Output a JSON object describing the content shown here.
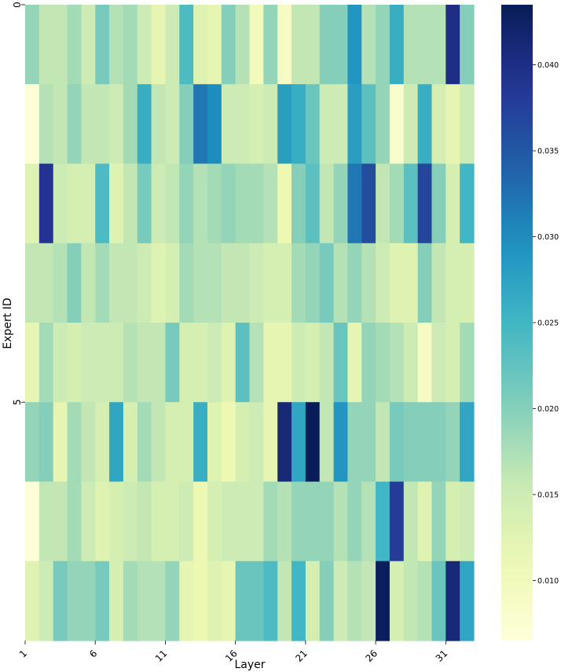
{
  "chart_data": {
    "type": "heatmap",
    "title": "",
    "xlabel": "Layer",
    "ylabel": "Expert ID",
    "x_tick_labels": [
      "1",
      "6",
      "11",
      "16",
      "21",
      "26",
      "31"
    ],
    "x_tick_indices": [
      0,
      5,
      10,
      15,
      20,
      25,
      30
    ],
    "y_tick_labels": [
      "0",
      "5"
    ],
    "y_tick_indices": [
      0,
      5
    ],
    "layers": [
      1,
      2,
      3,
      4,
      5,
      6,
      7,
      8,
      9,
      10,
      11,
      12,
      13,
      14,
      15,
      16,
      17,
      18,
      19,
      20,
      21,
      22,
      23,
      24,
      25,
      26,
      27,
      28,
      29,
      30,
      31,
      32
    ],
    "experts": [
      0,
      1,
      2,
      3,
      4,
      5,
      6,
      7
    ],
    "colormap": "YlGnBu",
    "vmin": 0.0065,
    "vmax": 0.0435,
    "colorbar_ticks": [
      0.01,
      0.015,
      0.02,
      0.025,
      0.03,
      0.035,
      0.04
    ],
    "colorbar_tick_labels": [
      "0.010",
      "0.015",
      "0.020",
      "0.025",
      "0.030",
      "0.035",
      "0.040"
    ],
    "values": [
      [
        0.019,
        0.016,
        0.016,
        0.018,
        0.015,
        0.021,
        0.017,
        0.018,
        0.015,
        0.012,
        0.015,
        0.024,
        0.013,
        0.012,
        0.02,
        0.017,
        0.01,
        0.019,
        0.009,
        0.016,
        0.016,
        0.02,
        0.02,
        0.029,
        0.017,
        0.019,
        0.026,
        0.017,
        0.017,
        0.017,
        0.04,
        0.02
      ],
      [
        0.007,
        0.017,
        0.016,
        0.019,
        0.016,
        0.016,
        0.015,
        0.018,
        0.026,
        0.016,
        0.015,
        0.02,
        0.032,
        0.03,
        0.015,
        0.015,
        0.014,
        0.015,
        0.028,
        0.026,
        0.022,
        0.015,
        0.015,
        0.028,
        0.023,
        0.019,
        0.008,
        0.015,
        0.026,
        0.014,
        0.012,
        0.015
      ],
      [
        0.013,
        0.039,
        0.015,
        0.014,
        0.014,
        0.024,
        0.013,
        0.016,
        0.021,
        0.015,
        0.016,
        0.019,
        0.017,
        0.018,
        0.019,
        0.018,
        0.018,
        0.017,
        0.011,
        0.02,
        0.023,
        0.016,
        0.019,
        0.032,
        0.036,
        0.016,
        0.018,
        0.023,
        0.037,
        0.02,
        0.014,
        0.025
      ],
      [
        0.016,
        0.016,
        0.017,
        0.02,
        0.016,
        0.018,
        0.016,
        0.016,
        0.015,
        0.013,
        0.014,
        0.018,
        0.017,
        0.017,
        0.016,
        0.016,
        0.015,
        0.014,
        0.014,
        0.018,
        0.019,
        0.021,
        0.017,
        0.019,
        0.017,
        0.015,
        0.013,
        0.013,
        0.02,
        0.016,
        0.014,
        0.014
      ],
      [
        0.012,
        0.018,
        0.015,
        0.014,
        0.015,
        0.015,
        0.015,
        0.017,
        0.016,
        0.016,
        0.021,
        0.014,
        0.014,
        0.015,
        0.013,
        0.023,
        0.017,
        0.012,
        0.012,
        0.015,
        0.014,
        0.016,
        0.022,
        0.012,
        0.019,
        0.018,
        0.017,
        0.015,
        0.009,
        0.015,
        0.014,
        0.018
      ],
      [
        0.019,
        0.02,
        0.012,
        0.018,
        0.016,
        0.014,
        0.027,
        0.014,
        0.018,
        0.016,
        0.014,
        0.014,
        0.026,
        0.013,
        0.011,
        0.014,
        0.015,
        0.012,
        0.041,
        0.027,
        0.0435,
        0.016,
        0.029,
        0.019,
        0.019,
        0.016,
        0.021,
        0.02,
        0.02,
        0.02,
        0.019,
        0.027
      ],
      [
        0.007,
        0.016,
        0.016,
        0.018,
        0.015,
        0.013,
        0.014,
        0.015,
        0.016,
        0.014,
        0.014,
        0.015,
        0.011,
        0.014,
        0.015,
        0.015,
        0.015,
        0.018,
        0.017,
        0.019,
        0.019,
        0.019,
        0.017,
        0.019,
        0.017,
        0.025,
        0.038,
        0.016,
        0.013,
        0.019,
        0.014,
        0.015
      ],
      [
        0.013,
        0.015,
        0.021,
        0.019,
        0.019,
        0.021,
        0.014,
        0.018,
        0.017,
        0.017,
        0.019,
        0.012,
        0.011,
        0.013,
        0.012,
        0.022,
        0.022,
        0.024,
        0.016,
        0.025,
        0.014,
        0.02,
        0.015,
        0.017,
        0.016,
        0.043,
        0.014,
        0.016,
        0.017,
        0.022,
        0.041,
        0.027
      ]
    ]
  }
}
